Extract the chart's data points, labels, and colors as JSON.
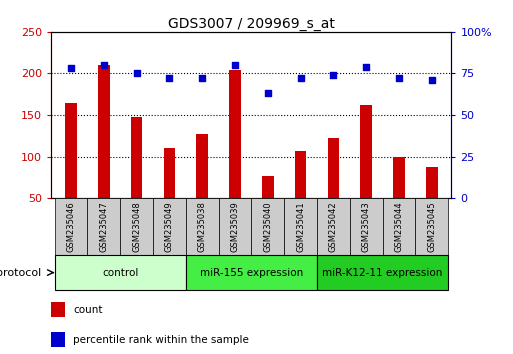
{
  "title": "GDS3007 / 209969_s_at",
  "samples": [
    "GSM235046",
    "GSM235047",
    "GSM235048",
    "GSM235049",
    "GSM235038",
    "GSM235039",
    "GSM235040",
    "GSM235041",
    "GSM235042",
    "GSM235043",
    "GSM235044",
    "GSM235045"
  ],
  "counts": [
    165,
    210,
    148,
    110,
    127,
    204,
    77,
    107,
    123,
    162,
    100,
    88
  ],
  "percentile": [
    78,
    80,
    75,
    72,
    72,
    80,
    63,
    72,
    74,
    79,
    72,
    71
  ],
  "bar_color": "#cc0000",
  "dot_color": "#0000cc",
  "ylim_left": [
    50,
    250
  ],
  "ylim_right": [
    0,
    100
  ],
  "yticks_left": [
    50,
    100,
    150,
    200,
    250
  ],
  "yticks_right": [
    0,
    25,
    50,
    75,
    100
  ],
  "yticklabels_right": [
    "0",
    "25",
    "50",
    "75",
    "100%"
  ],
  "groups": [
    {
      "label": "control",
      "start": 0,
      "end": 3,
      "color": "#ccffcc"
    },
    {
      "label": "miR-155 expression",
      "start": 4,
      "end": 7,
      "color": "#44ee44"
    },
    {
      "label": "miR-K12-11 expression",
      "start": 8,
      "end": 11,
      "color": "#22cc22"
    }
  ],
  "protocol_label": "protocol",
  "legend_items": [
    {
      "label": "count",
      "color": "#cc0000"
    },
    {
      "label": "percentile rank within the sample",
      "color": "#0000cc"
    }
  ],
  "bar_width": 0.35,
  "dotgrid_yticks": [
    100,
    150,
    200
  ],
  "sample_box_color": "#cccccc",
  "title_fontsize": 10
}
